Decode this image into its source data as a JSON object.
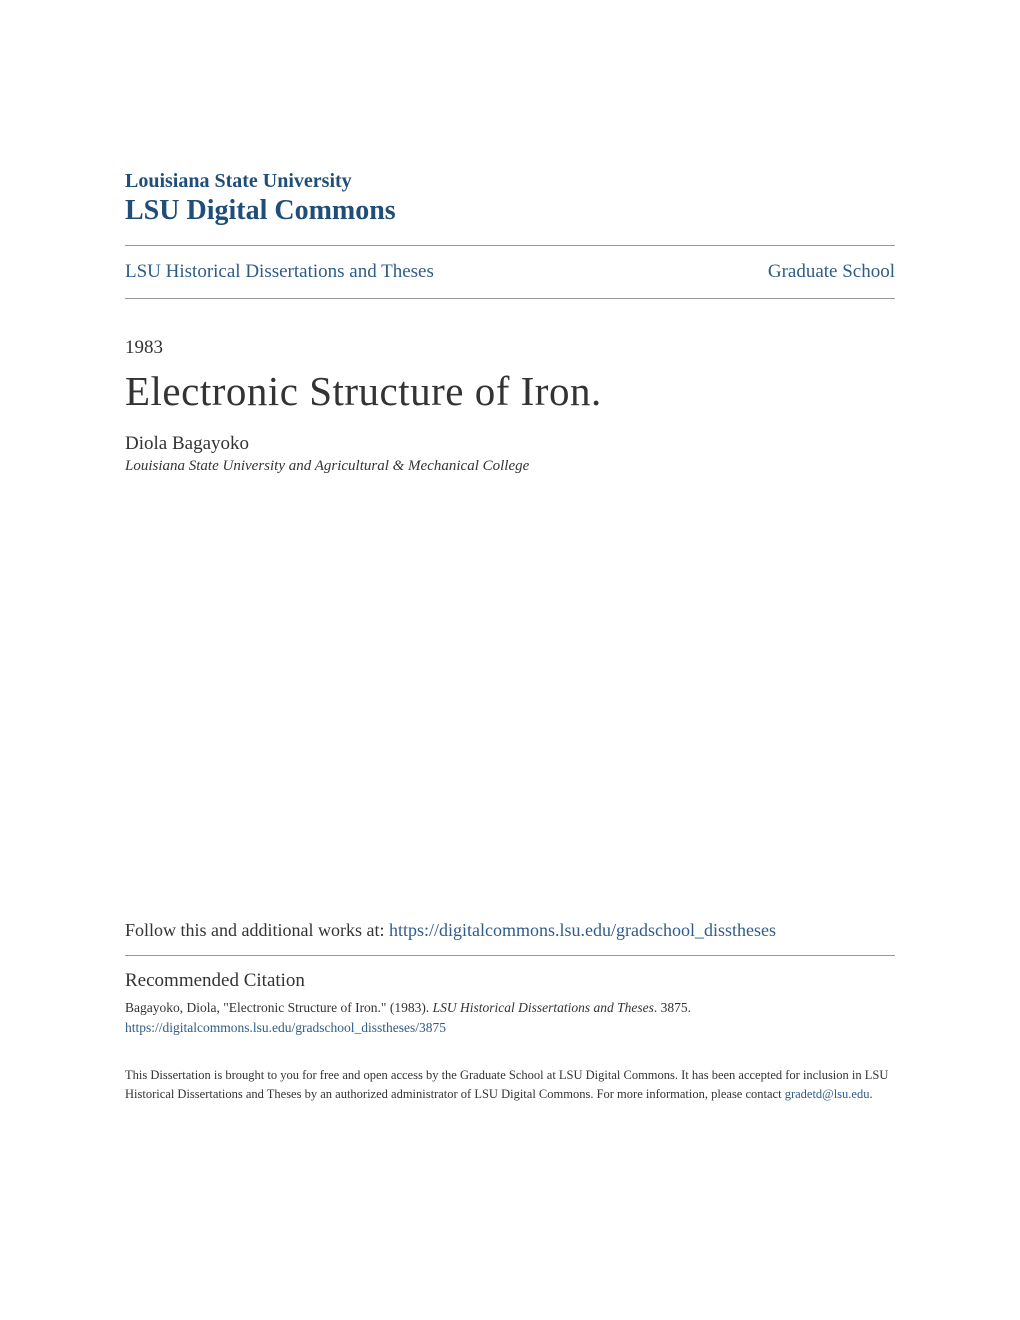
{
  "header": {
    "university": "Louisiana State University",
    "repository": "LSU Digital Commons"
  },
  "breadcrumb": {
    "left": "LSU Historical Dissertations and Theses",
    "right": "Graduate School"
  },
  "document": {
    "year": "1983",
    "title": "Electronic Structure of Iron.",
    "author": "Diola Bagayoko",
    "affiliation": "Louisiana State University and Agricultural & Mechanical College"
  },
  "follow": {
    "prefix": "Follow this and additional works at: ",
    "url": "https://digitalcommons.lsu.edu/gradschool_disstheses"
  },
  "citation": {
    "heading": "Recommended Citation",
    "text_part1": "Bagayoko, Diola, \"Electronic Structure of Iron.\" (1983). ",
    "text_italic": "LSU Historical Dissertations and Theses",
    "text_part2": ". 3875.",
    "link": "https://digitalcommons.lsu.edu/gradschool_disstheses/3875"
  },
  "footer": {
    "text_part1": "This Dissertation is brought to you for free and open access by the Graduate School at LSU Digital Commons. It has been accepted for inclusion in LSU Historical Dissertations and Theses by an authorized administrator of LSU Digital Commons. For more information, please contact ",
    "email": "gradetd@lsu.edu",
    "text_part2": "."
  },
  "colors": {
    "primary_blue": "#1f4e79",
    "link_blue": "#2e5c8a",
    "text": "#333333",
    "divider": "#999999",
    "background": "#ffffff"
  }
}
